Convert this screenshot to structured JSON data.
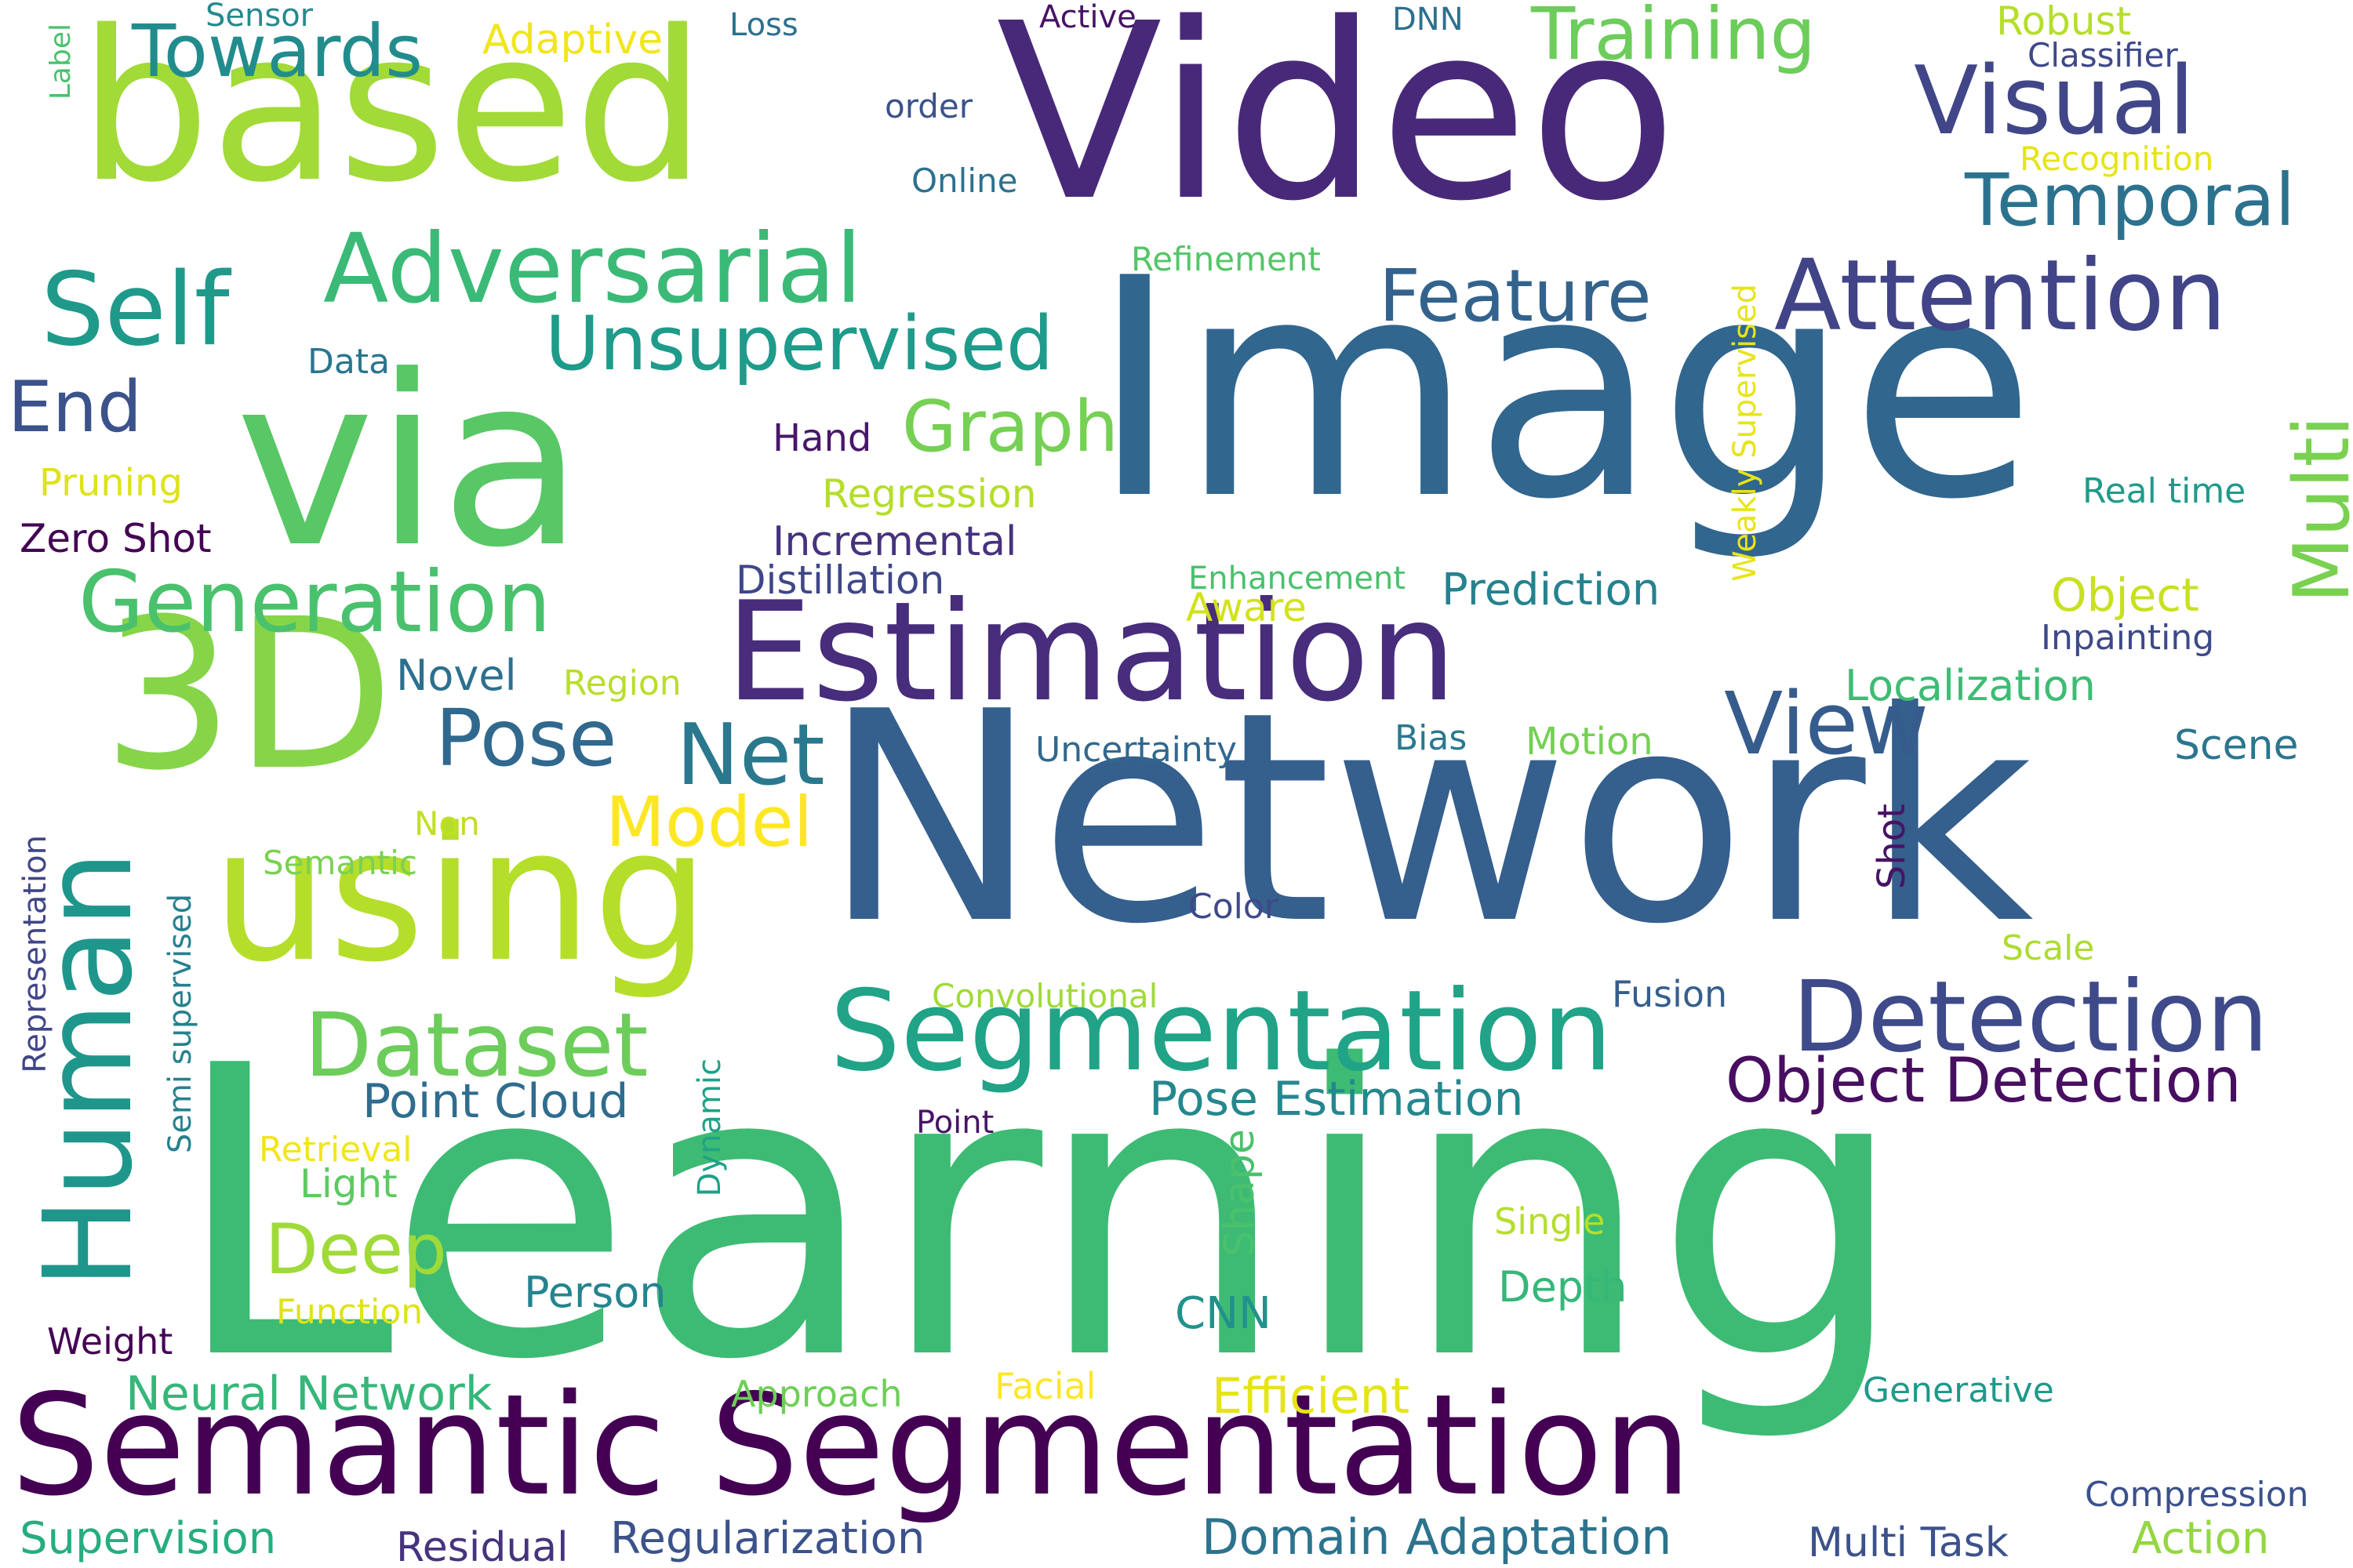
{
  "words": [
    {
      "text": "Learning",
      "color": "#3dbb74"
    },
    {
      "text": "Network",
      "color": "#355f8d"
    },
    {
      "text": "Image",
      "color": "#31668e"
    },
    {
      "text": "Video",
      "color": "#482979"
    },
    {
      "text": "based",
      "color": "#a2da37"
    },
    {
      "text": "via",
      "color": "#58c765"
    },
    {
      "text": "3D",
      "color": "#86d549"
    },
    {
      "text": "using",
      "color": "#b5de2b"
    },
    {
      "text": "Semantic Segmentation",
      "color": "#440154"
    },
    {
      "text": "Estimation",
      "color": "#472d7b"
    },
    {
      "text": "Segmentation",
      "color": "#20a386"
    },
    {
      "text": "Human",
      "color": "#1f968b"
    },
    {
      "text": "Detection",
      "color": "#3e4a89"
    },
    {
      "text": "Attention",
      "color": "#414487"
    },
    {
      "text": "Visual",
      "color": "#404688"
    },
    {
      "text": "Adversarial",
      "color": "#3aba76"
    },
    {
      "text": "Self",
      "color": "#1f9a8a"
    },
    {
      "text": "Unsupervised",
      "color": "#1e9b8a"
    },
    {
      "text": "Generation",
      "color": "#4ac16d"
    },
    {
      "text": "Temporal",
      "color": "#2c728e"
    },
    {
      "text": "Feature",
      "color": "#33638d"
    },
    {
      "text": "Training",
      "color": "#6ccd5a"
    },
    {
      "text": "Towards",
      "color": "#228c8d"
    },
    {
      "text": "Pose",
      "color": "#31688e"
    },
    {
      "text": "Net",
      "color": "#2a788e"
    },
    {
      "text": "View",
      "color": "#365c8d"
    },
    {
      "text": "Dataset",
      "color": "#6ccd5a"
    },
    {
      "text": "Multi",
      "color": "#7ad151"
    },
    {
      "text": "Graph",
      "color": "#75d054"
    },
    {
      "text": "Object Detection",
      "color": "#470e61"
    },
    {
      "text": "Model",
      "color": "#fde725"
    },
    {
      "text": "Deep",
      "color": "#a0da39"
    },
    {
      "text": "End",
      "color": "#3b528b"
    },
    {
      "text": "Pose Estimation",
      "color": "#24878e"
    },
    {
      "text": "Point Cloud",
      "color": "#2f6c8e"
    },
    {
      "text": "Neural Network",
      "color": "#35b779"
    },
    {
      "text": "Efficient",
      "color": "#e5e419"
    },
    {
      "text": "Domain Adaptation",
      "color": "#2c738e"
    },
    {
      "text": "Regularization",
      "color": "#3b528b"
    },
    {
      "text": "Supervision",
      "color": "#26ad81"
    },
    {
      "text": "Residual",
      "color": "#46337e"
    },
    {
      "text": "Multi Task",
      "color": "#3b528b"
    },
    {
      "text": "Action",
      "color": "#93d741"
    },
    {
      "text": "Compression",
      "color": "#3b518b"
    },
    {
      "text": "Generative",
      "color": "#1f998a"
    },
    {
      "text": "Facial",
      "color": "#fde725"
    },
    {
      "text": "Approach",
      "color": "#6ece58"
    },
    {
      "text": "CNN",
      "color": "#21918c"
    },
    {
      "text": "Person",
      "color": "#25848e"
    },
    {
      "text": "Depth",
      "color": "#35b779"
    },
    {
      "text": "Single",
      "color": "#b5de2b"
    },
    {
      "text": "Shape",
      "color": "#4ac16d"
    },
    {
      "text": "Weight",
      "color": "#440154"
    },
    {
      "text": "Function",
      "color": "#dde318"
    },
    {
      "text": "Light",
      "color": "#5ec962"
    },
    {
      "text": "Retrieval",
      "color": "#f1e51d"
    },
    {
      "text": "Semi supervised",
      "color": "#27808e"
    },
    {
      "text": "Representation",
      "color": "#404688"
    },
    {
      "text": "Dynamic",
      "color": "#1fa287"
    },
    {
      "text": "Point",
      "color": "#481467"
    },
    {
      "text": "Convolutional",
      "color": "#a0da39"
    },
    {
      "text": "Fusion",
      "color": "#355f8d"
    },
    {
      "text": "Scale",
      "color": "#addc30"
    },
    {
      "text": "Color",
      "color": "#3e4989"
    },
    {
      "text": "Shot",
      "color": "#471365"
    },
    {
      "text": "Semantic",
      "color": "#7ad151"
    },
    {
      "text": "Non",
      "color": "#c2df23"
    },
    {
      "text": "Novel",
      "color": "#2d708e"
    },
    {
      "text": "Region",
      "color": "#b8de29"
    },
    {
      "text": "Uncertainty",
      "color": "#31688e"
    },
    {
      "text": "Bias",
      "color": "#29798e"
    },
    {
      "text": "Motion",
      "color": "#75d054"
    },
    {
      "text": "Localization",
      "color": "#3dbc74"
    },
    {
      "text": "Scene",
      "color": "#2b758e"
    },
    {
      "text": "Object",
      "color": "#c8e020"
    },
    {
      "text": "Inpainting",
      "color": "#3e4989"
    },
    {
      "text": "Real time",
      "color": "#1f9a8a"
    },
    {
      "text": "Prediction",
      "color": "#26828e"
    },
    {
      "text": "Enhancement",
      "color": "#4ac16d"
    },
    {
      "text": "Aware",
      "color": "#d2e21b"
    },
    {
      "text": "Distillation",
      "color": "#3f4788"
    },
    {
      "text": "Incremental",
      "color": "#46327e"
    },
    {
      "text": "Regression",
      "color": "#b5de2b"
    },
    {
      "text": "Hand",
      "color": "#481769"
    },
    {
      "text": "Zero Shot",
      "color": "#440154"
    },
    {
      "text": "Pruning",
      "color": "#dde318"
    },
    {
      "text": "Data",
      "color": "#2a768e"
    },
    {
      "text": "Refinement",
      "color": "#54c568"
    },
    {
      "text": "Weakly Supervised",
      "color": "#e7e419"
    },
    {
      "text": "Recognition",
      "color": "#e5e419"
    },
    {
      "text": "Classifier",
      "color": "#3e4989"
    },
    {
      "text": "Robust",
      "color": "#b5de2b"
    },
    {
      "text": "DNN",
      "color": "#2d708e"
    },
    {
      "text": "Active",
      "color": "#471365"
    },
    {
      "text": "order",
      "color": "#3b528b"
    },
    {
      "text": "Online",
      "color": "#2c718e"
    },
    {
      "text": "Loss",
      "color": "#2d708e"
    },
    {
      "text": "Adaptive",
      "color": "#f1e51d"
    },
    {
      "text": "Sensor",
      "color": "#238a8d"
    },
    {
      "text": "Label",
      "color": "#4ac16d"
    }
  ]
}
